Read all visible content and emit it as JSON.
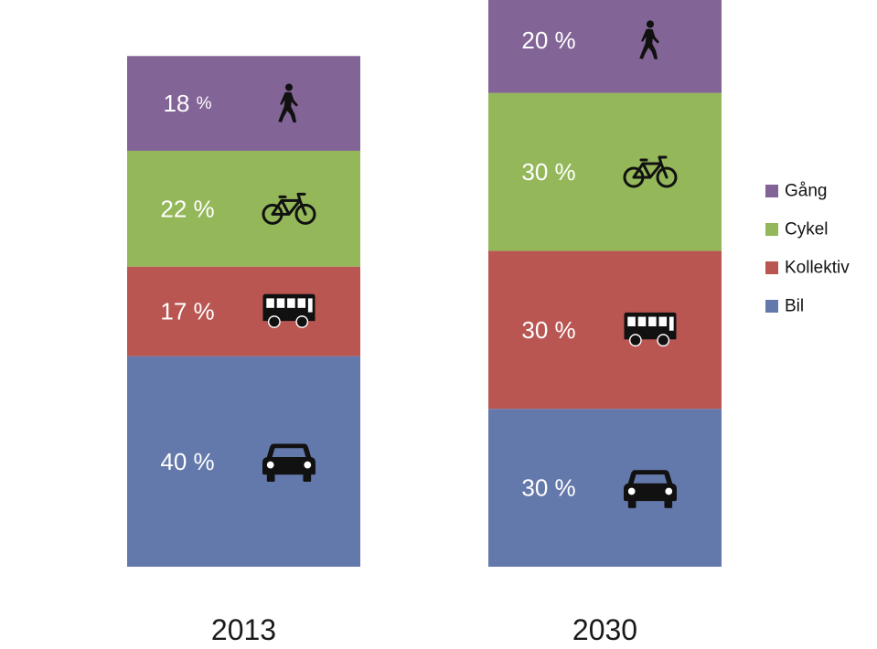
{
  "chart_data": {
    "type": "bar",
    "stacked": true,
    "categories": [
      "2013",
      "2030"
    ],
    "series": [
      {
        "name": "Bil",
        "color": "#6479ab",
        "icon": "car-icon",
        "values": [
          40,
          30
        ],
        "labels": [
          "40 %",
          "30 %"
        ]
      },
      {
        "name": "Kollektiv",
        "color": "#b95652",
        "icon": "bus-icon",
        "values": [
          17,
          30
        ],
        "labels": [
          "17 %",
          "30 %"
        ]
      },
      {
        "name": "Cykel",
        "color": "#94b75a",
        "icon": "bicycle-icon",
        "values": [
          22,
          30
        ],
        "labels": [
          "22 %",
          "30 %"
        ]
      },
      {
        "name": "Gång",
        "color": "#836496",
        "icon": "pedestrian-icon",
        "values": [
          18,
          20
        ],
        "labels": [
          "18 %",
          "20 %"
        ]
      }
    ],
    "legend": {
      "placement": "right",
      "order": [
        "Gång",
        "Cykel",
        "Kollektiv",
        "Bil"
      ]
    },
    "grid": false,
    "axes_visible": false
  }
}
